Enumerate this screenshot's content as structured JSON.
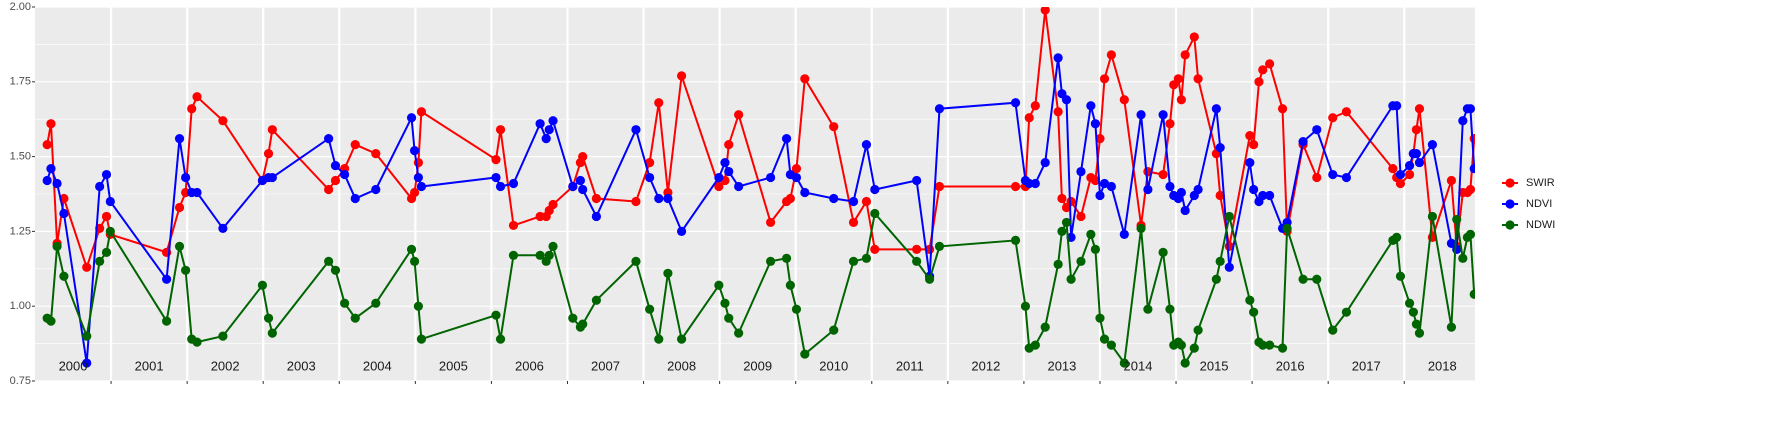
{
  "chart_data": {
    "type": "line",
    "x": [
      2000.16,
      2000.21,
      2000.29,
      2000.38,
      2000.68,
      2000.85,
      2000.94,
      2000.99,
      2001.73,
      2001.9,
      2001.98,
      2002.06,
      2002.13,
      2002.47,
      2002.99,
      2003.07,
      2003.12,
      2003.86,
      2003.95,
      2004.07,
      2004.21,
      2004.48,
      2004.95,
      2004.99,
      2005.04,
      2005.08,
      2006.06,
      2006.12,
      2006.29,
      2006.64,
      2006.72,
      2006.76,
      2006.81,
      2007.07,
      2007.17,
      2007.2,
      2007.38,
      2007.9,
      2008.08,
      2008.2,
      2008.32,
      2008.5,
      2008.99,
      2009.07,
      2009.12,
      2009.25,
      2009.67,
      2009.88,
      2009.93,
      2010.01,
      2010.12,
      2010.5,
      2010.76,
      2010.93,
      2011.04,
      2011.59,
      2011.76,
      2011.89,
      2012.89,
      2013.02,
      2013.07,
      2013.15,
      2013.28,
      2013.45,
      2013.5,
      2013.56,
      2013.62,
      2013.75,
      2013.88,
      2013.94,
      2014.0,
      2014.06,
      2014.15,
      2014.32,
      2014.54,
      2014.63,
      2014.83,
      2014.92,
      2014.97,
      2015.03,
      2015.07,
      2015.12,
      2015.24,
      2015.29,
      2015.53,
      2015.58,
      2015.7,
      2015.97,
      2016.02,
      2016.09,
      2016.14,
      2016.23,
      2016.4,
      2016.46,
      2016.67,
      2016.85,
      2017.06,
      2017.24,
      2017.85,
      2017.9,
      2017.95,
      2018.07,
      2018.12,
      2018.16,
      2018.2,
      2018.37,
      2018.62,
      2018.69,
      2018.77,
      2018.83,
      2018.87,
      2018.92
    ],
    "series": [
      {
        "name": "SWIR",
        "color": "#ff0000",
        "values": [
          1.54,
          1.61,
          1.21,
          1.36,
          1.13,
          1.26,
          1.3,
          1.24,
          1.18,
          1.33,
          1.38,
          1.66,
          1.7,
          1.62,
          1.42,
          1.51,
          1.59,
          1.39,
          1.42,
          1.46,
          1.54,
          1.51,
          1.36,
          1.38,
          1.48,
          1.65,
          1.49,
          1.59,
          1.27,
          1.3,
          1.3,
          1.32,
          1.34,
          1.4,
          1.48,
          1.5,
          1.36,
          1.35,
          1.48,
          1.68,
          1.38,
          1.77,
          1.4,
          1.42,
          1.54,
          1.64,
          1.28,
          1.35,
          1.36,
          1.46,
          1.76,
          1.6,
          1.28,
          1.35,
          1.19,
          1.19,
          1.19,
          1.4,
          1.4,
          1.4,
          1.63,
          1.67,
          1.99,
          1.65,
          1.36,
          1.33,
          1.35,
          1.3,
          1.43,
          1.42,
          1.56,
          1.76,
          1.84,
          1.69,
          1.27,
          1.45,
          1.44,
          1.61,
          1.74,
          1.76,
          1.69,
          1.84,
          1.9,
          1.76,
          1.51,
          1.37,
          1.2,
          1.57,
          1.54,
          1.75,
          1.79,
          1.81,
          1.66,
          1.25,
          1.54,
          1.43,
          1.63,
          1.65,
          1.46,
          1.43,
          1.41,
          1.44,
          1.51,
          1.59,
          1.66,
          1.23,
          1.42,
          1.2,
          1.38,
          1.38,
          1.39,
          1.56
        ]
      },
      {
        "name": "NDVI",
        "color": "#0000ff",
        "values": [
          1.42,
          1.46,
          1.41,
          1.31,
          0.81,
          1.4,
          1.44,
          1.35,
          1.09,
          1.56,
          1.43,
          1.38,
          1.38,
          1.26,
          1.42,
          1.43,
          1.43,
          1.56,
          1.47,
          1.44,
          1.36,
          1.39,
          1.63,
          1.52,
          1.43,
          1.4,
          1.43,
          1.4,
          1.41,
          1.61,
          1.56,
          1.59,
          1.62,
          1.4,
          1.42,
          1.39,
          1.3,
          1.59,
          1.43,
          1.36,
          1.36,
          1.25,
          1.43,
          1.48,
          1.45,
          1.4,
          1.43,
          1.56,
          1.44,
          1.43,
          1.38,
          1.36,
          1.35,
          1.54,
          1.39,
          1.42,
          1.1,
          1.66,
          1.68,
          1.42,
          1.41,
          1.41,
          1.48,
          1.83,
          1.71,
          1.69,
          1.23,
          1.45,
          1.67,
          1.61,
          1.37,
          1.41,
          1.4,
          1.24,
          1.64,
          1.39,
          1.64,
          1.4,
          1.37,
          1.36,
          1.38,
          1.32,
          1.37,
          1.39,
          1.66,
          1.53,
          1.13,
          1.48,
          1.39,
          1.35,
          1.37,
          1.37,
          1.26,
          1.28,
          1.55,
          1.59,
          1.44,
          1.43,
          1.67,
          1.67,
          1.44,
          1.47,
          1.51,
          1.51,
          1.48,
          1.54,
          1.21,
          1.19,
          1.62,
          1.66,
          1.66,
          1.46
        ]
      },
      {
        "name": "NDWI",
        "color": "#006400",
        "values": [
          0.96,
          0.95,
          1.2,
          1.1,
          0.9,
          1.15,
          1.18,
          1.25,
          0.95,
          1.2,
          1.12,
          0.89,
          0.88,
          0.9,
          1.07,
          0.96,
          0.91,
          1.15,
          1.12,
          1.01,
          0.96,
          1.01,
          1.19,
          1.15,
          1.0,
          0.89,
          0.97,
          0.89,
          1.17,
          1.17,
          1.15,
          1.17,
          1.2,
          0.96,
          0.93,
          0.94,
          1.02,
          1.15,
          0.99,
          0.89,
          1.11,
          0.89,
          1.07,
          1.01,
          0.96,
          0.91,
          1.15,
          1.16,
          1.07,
          0.99,
          0.84,
          0.92,
          1.15,
          1.16,
          1.31,
          1.15,
          1.09,
          1.2,
          1.22,
          1.0,
          0.86,
          0.87,
          0.93,
          1.14,
          1.25,
          1.28,
          1.09,
          1.15,
          1.24,
          1.19,
          0.96,
          0.89,
          0.87,
          0.81,
          1.26,
          0.99,
          1.18,
          0.99,
          0.87,
          0.88,
          0.87,
          0.81,
          0.86,
          0.92,
          1.09,
          1.15,
          1.3,
          1.02,
          0.98,
          0.88,
          0.87,
          0.87,
          0.86,
          1.26,
          1.09,
          1.09,
          0.92,
          0.98,
          1.22,
          1.23,
          1.1,
          1.01,
          0.98,
          0.94,
          0.91,
          1.3,
          0.93,
          1.29,
          1.16,
          1.23,
          1.24,
          1.04
        ]
      }
    ],
    "xlim": [
      2000,
      2018.93
    ],
    "xticks": [
      {
        "value": 2000.5,
        "label": "2000"
      },
      {
        "value": 2001.5,
        "label": "2001"
      },
      {
        "value": 2002.5,
        "label": "2002"
      },
      {
        "value": 2003.5,
        "label": "2003"
      },
      {
        "value": 2004.5,
        "label": "2004"
      },
      {
        "value": 2005.5,
        "label": "2005"
      },
      {
        "value": 2006.5,
        "label": "2006"
      },
      {
        "value": 2007.5,
        "label": "2007"
      },
      {
        "value": 2008.5,
        "label": "2008"
      },
      {
        "value": 2009.5,
        "label": "2009"
      },
      {
        "value": 2010.5,
        "label": "2010"
      },
      {
        "value": 2011.5,
        "label": "2011"
      },
      {
        "value": 2012.5,
        "label": "2012"
      },
      {
        "value": 2013.5,
        "label": "2013"
      },
      {
        "value": 2014.5,
        "label": "2014"
      },
      {
        "value": 2015.5,
        "label": "2015"
      },
      {
        "value": 2016.5,
        "label": "2016"
      },
      {
        "value": 2017.5,
        "label": "2017"
      },
      {
        "value": 2018.5,
        "label": "2018"
      }
    ],
    "xgrid": [
      2001,
      2002,
      2003,
      2004,
      2005,
      2006,
      2007,
      2008,
      2009,
      2010,
      2011,
      2012,
      2013,
      2014,
      2015,
      2016,
      2017,
      2018
    ],
    "ylim": [
      0.75,
      2.0
    ],
    "yticks": [
      {
        "value": 0.75,
        "label": "0.75"
      },
      {
        "value": 1.0,
        "label": "1.00"
      },
      {
        "value": 1.25,
        "label": "1.25"
      },
      {
        "value": 1.5,
        "label": "1.50"
      },
      {
        "value": 1.75,
        "label": "1.75"
      },
      {
        "value": 2.0,
        "label": "2.00"
      }
    ],
    "grid": true,
    "legend": "right"
  }
}
